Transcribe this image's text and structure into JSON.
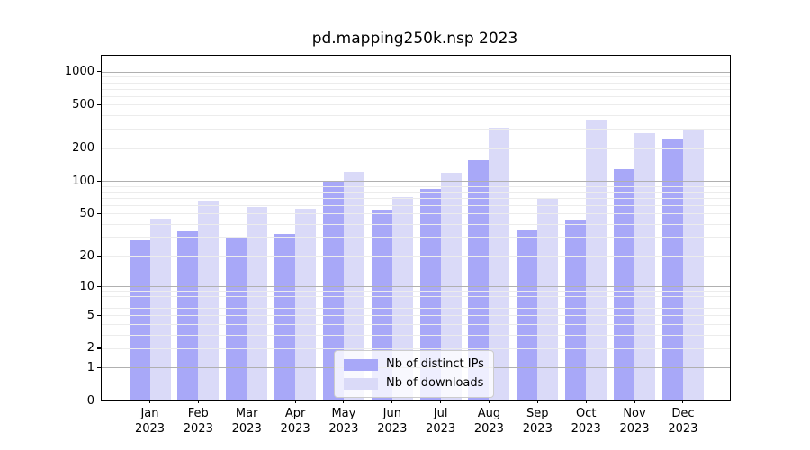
{
  "title": "pd.mapping250k.nsp 2023",
  "chart_data": {
    "type": "bar",
    "title": "pd.mapping250k.nsp 2023",
    "x_months": [
      "Jan",
      "Feb",
      "Mar",
      "Apr",
      "May",
      "Jun",
      "Jul",
      "Aug",
      "Sep",
      "Oct",
      "Nov",
      "Dec"
    ],
    "x_year": "2023",
    "categories": [
      "Jan 2023",
      "Feb 2023",
      "Mar 2023",
      "Apr 2023",
      "May 2023",
      "Jun 2023",
      "Jul 2023",
      "Aug 2023",
      "Sep 2023",
      "Oct 2023",
      "Nov 2023",
      "Dec 2023"
    ],
    "series": [
      {
        "name": "Nb of distinct IPs",
        "values": [
          28,
          34,
          30,
          32,
          100,
          54,
          84,
          155,
          35,
          44,
          128,
          246
        ]
      },
      {
        "name": "Nb of downloads",
        "values": [
          45,
          66,
          57,
          55,
          122,
          71,
          118,
          305,
          69,
          365,
          274,
          300
        ]
      }
    ],
    "yscale": "log1p",
    "ylim": [
      0,
      1400
    ],
    "y_tick_values": [
      0,
      1,
      2,
      5,
      10,
      20,
      50,
      100,
      200,
      500,
      1000
    ],
    "y_major_gridline_values": [
      1,
      10,
      100,
      1000
    ],
    "grid": "horizontal",
    "legend_position": "lower center"
  },
  "legend": {
    "items": [
      "Nb of distinct IPs",
      "Nb of downloads"
    ]
  },
  "colors": {
    "ips_bar": "rgba(115,115,244,0.62)",
    "downloads_bar": "rgba(173,173,239,0.45)",
    "ips_swatch": "#a8a8f8",
    "downloads_swatch": "#dadaf8",
    "major_grid": "#b0b0b0",
    "minor_grid": "#ececec",
    "axis_line": "#000000",
    "text": "#000000"
  }
}
